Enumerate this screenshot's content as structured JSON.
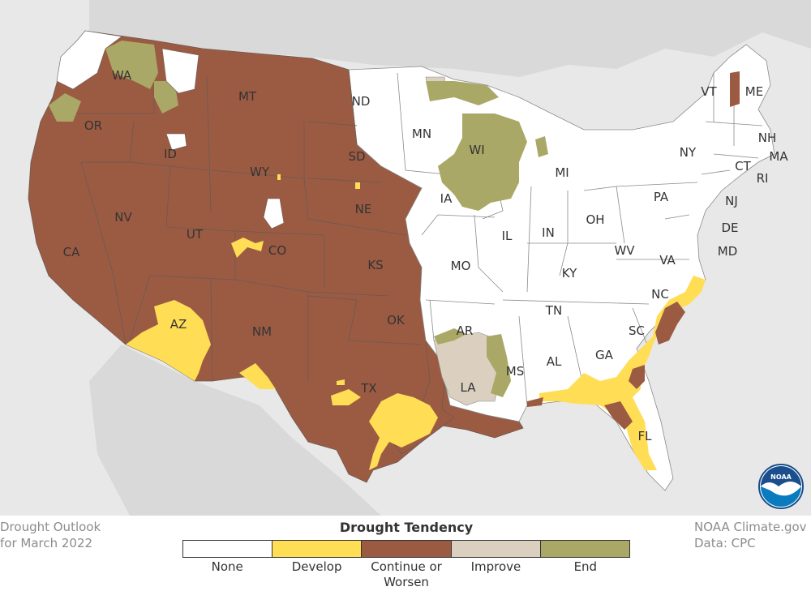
{
  "map": {
    "states": [
      "WA",
      "OR",
      "ID",
      "MT",
      "ND",
      "SD",
      "WY",
      "NE",
      "CA",
      "NV",
      "UT",
      "CO",
      "KS",
      "AZ",
      "NM",
      "OK",
      "TX",
      "MN",
      "WI",
      "IA",
      "MI",
      "IL",
      "IN",
      "OH",
      "MO",
      "KY",
      "AR",
      "TN",
      "LA",
      "MS",
      "AL",
      "GA",
      "SC",
      "NC",
      "FL",
      "VA",
      "WV",
      "PA",
      "NY",
      "VT",
      "ME",
      "NH",
      "MA",
      "RI",
      "CT",
      "NJ",
      "DE",
      "MD"
    ]
  },
  "footer": {
    "outlook_line1": "Drought Outlook",
    "outlook_line2": "for March 2022",
    "credit_line1": "NOAA Climate.gov",
    "credit_line2": "Data: CPC",
    "logo_text": "NOAA"
  },
  "legend": {
    "title": "Drought Tendency",
    "items": [
      {
        "label": "None",
        "color": "#ffffff"
      },
      {
        "label": "Develop",
        "color": "#ffdd55"
      },
      {
        "label": "Continue or Worsen",
        "color": "#9b5b43"
      },
      {
        "label": "Improve",
        "color": "#dbd0bf"
      },
      {
        "label": "End",
        "color": "#aaa866"
      }
    ]
  }
}
